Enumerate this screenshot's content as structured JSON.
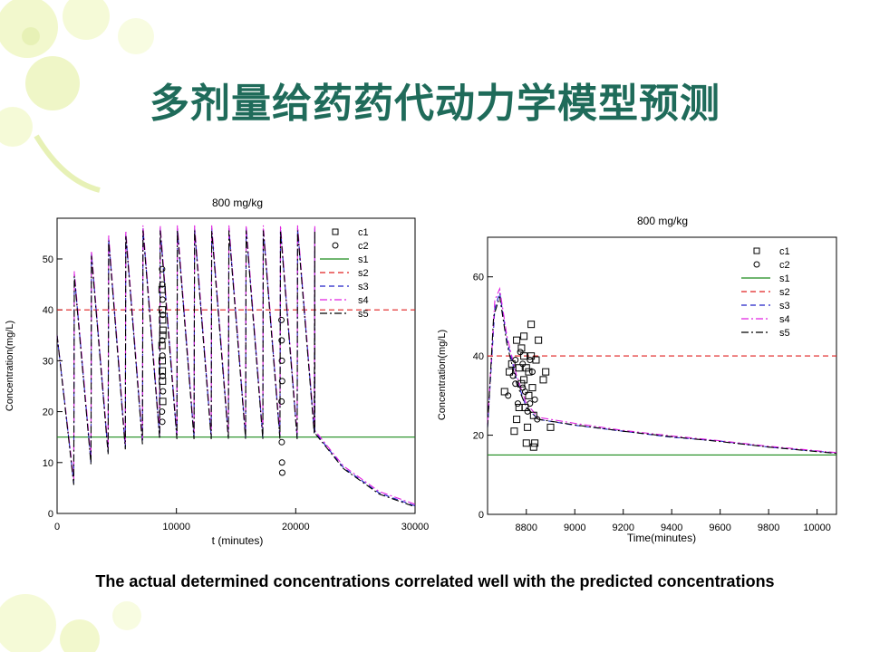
{
  "slide": {
    "title": "多剂量给药药代动力学模型预测",
    "caption": "The actual determined concentrations correlated well with the predicted concentrations"
  },
  "colors": {
    "title": "#1f6b5a",
    "s1": "#1a8a1a",
    "s2": "#e02020",
    "s3": "#2020c8",
    "s4": "#e020e0",
    "s5": "#000000"
  },
  "chart_data": [
    {
      "type": "line",
      "title": "800 mg/kg",
      "xlabel": "t (minutes)",
      "ylabel": "Concentration(mg/L)",
      "xlim": [
        0,
        30000
      ],
      "ylim": [
        0,
        58
      ],
      "xticks": [
        0,
        10000,
        20000,
        30000
      ],
      "xtick_labels": [
        "0",
        "10000",
        "20000",
        "30000"
      ],
      "yticks": [
        0,
        10,
        20,
        30,
        40,
        50
      ],
      "legend": [
        "c1",
        "c2",
        "s1",
        "s2",
        "s3",
        "s4",
        "s5"
      ],
      "legend_position": "top-right",
      "grid": false,
      "series": [
        {
          "name": "s1",
          "style": "solid",
          "values": [
            [
              0,
              15
            ],
            [
              30000,
              15
            ]
          ]
        },
        {
          "name": "s2",
          "style": "dashed",
          "values": [
            [
              0,
              40
            ],
            [
              30000,
              40
            ]
          ]
        },
        {
          "name": "s3",
          "style": "dashed",
          "dose_interval": 1440,
          "doses": 15,
          "peaks": [
            47,
            51,
            54,
            55,
            56,
            56,
            56,
            56,
            56,
            56,
            56,
            56,
            56,
            56,
            56
          ],
          "troughs": [
            6,
            10,
            12,
            13,
            14,
            15,
            15,
            15,
            15,
            15,
            15,
            15,
            15,
            15,
            16
          ],
          "tail": [
            [
              21600,
              16
            ],
            [
              24000,
              9
            ],
            [
              27000,
              4
            ],
            [
              30000,
              1.5
            ]
          ]
        },
        {
          "name": "s4",
          "style": "dashdot"
        },
        {
          "name": "s5",
          "style": "dashdot"
        }
      ],
      "observations": {
        "c1": [
          [
            8800,
            44
          ],
          [
            8820,
            40
          ],
          [
            8840,
            38
          ],
          [
            8860,
            35
          ],
          [
            8810,
            30
          ],
          [
            8830,
            26
          ],
          [
            8850,
            22
          ],
          [
            8870,
            36
          ],
          [
            8790,
            33
          ],
          [
            8815,
            28
          ]
        ],
        "c2": [
          [
            8800,
            48
          ],
          [
            8820,
            45
          ],
          [
            8840,
            42
          ],
          [
            8860,
            39
          ],
          [
            8810,
            34
          ],
          [
            8830,
            31
          ],
          [
            8850,
            27
          ],
          [
            8870,
            24
          ],
          [
            8790,
            20
          ],
          [
            8815,
            18
          ],
          [
            18800,
            38
          ],
          [
            18820,
            34
          ],
          [
            18840,
            30
          ],
          [
            18860,
            26
          ],
          [
            18810,
            22
          ],
          [
            18830,
            14
          ],
          [
            18850,
            10
          ],
          [
            18870,
            8
          ]
        ]
      }
    },
    {
      "type": "line",
      "title": "800 mg/kg",
      "xlabel": "Time(minutes)",
      "ylabel": "Concentration(mg/L)",
      "xlim": [
        8640,
        10080
      ],
      "ylim": [
        0,
        70
      ],
      "xticks": [
        8800,
        9000,
        9200,
        9400,
        9600,
        9800,
        10000
      ],
      "yticks": [
        0,
        20,
        40,
        60
      ],
      "legend": [
        "c1",
        "c2",
        "s1",
        "s2",
        "s3",
        "s4",
        "s5"
      ],
      "legend_position": "top-right",
      "grid": false,
      "series": [
        {
          "name": "s1",
          "style": "solid",
          "values": [
            [
              8640,
              15
            ],
            [
              10080,
              15
            ]
          ]
        },
        {
          "name": "s2",
          "style": "dashed",
          "values": [
            [
              8640,
              40
            ],
            [
              10080,
              40
            ]
          ]
        },
        {
          "name": "s3",
          "style": "dashed",
          "values": [
            [
              8640,
              22
            ],
            [
              8670,
              52
            ],
            [
              8690,
              56
            ],
            [
              8720,
              44
            ],
            [
              8760,
              34
            ],
            [
              8800,
              27
            ],
            [
              8850,
              24
            ],
            [
              9000,
              22.5
            ],
            [
              9200,
              21
            ],
            [
              9400,
              19.5
            ],
            [
              9600,
              18.5
            ],
            [
              9800,
              17
            ],
            [
              10080,
              15.5
            ]
          ]
        },
        {
          "name": "s4",
          "style": "dashdot",
          "values": [
            [
              8640,
              23
            ],
            [
              8670,
              54
            ],
            [
              8690,
              57
            ],
            [
              8720,
              45
            ],
            [
              8760,
              35
            ],
            [
              8800,
              28
            ],
            [
              8850,
              24.5
            ],
            [
              9000,
              23
            ],
            [
              9200,
              21.2
            ],
            [
              9400,
              19.8
            ],
            [
              9600,
              18.6
            ],
            [
              9800,
              17.2
            ],
            [
              10080,
              15.6
            ]
          ]
        },
        {
          "name": "s5",
          "style": "dashdot",
          "values": [
            [
              8640,
              22
            ],
            [
              8665,
              50
            ],
            [
              8690,
              55
            ],
            [
              8720,
              43
            ],
            [
              8760,
              33
            ],
            [
              8800,
              27
            ],
            [
              8850,
              24
            ],
            [
              9000,
              22.6
            ],
            [
              9200,
              21
            ],
            [
              9400,
              19.6
            ],
            [
              9600,
              18.4
            ],
            [
              9800,
              17
            ],
            [
              10080,
              15.4
            ]
          ]
        }
      ],
      "observations": {
        "c1": [
          [
            8710,
            31
          ],
          [
            8730,
            36
          ],
          [
            8740,
            38
          ],
          [
            8750,
            21
          ],
          [
            8760,
            24
          ],
          [
            8770,
            37
          ],
          [
            8780,
            42
          ],
          [
            8790,
            40
          ],
          [
            8790,
            34
          ],
          [
            8795,
            27
          ],
          [
            8800,
            18
          ],
          [
            8805,
            22
          ],
          [
            8810,
            30
          ],
          [
            8810,
            36
          ],
          [
            8820,
            40
          ],
          [
            8820,
            48
          ],
          [
            8825,
            32
          ],
          [
            8830,
            17
          ],
          [
            8830,
            25
          ],
          [
            8835,
            18
          ],
          [
            8840,
            39
          ],
          [
            8850,
            44
          ],
          [
            8870,
            34
          ],
          [
            8880,
            36
          ],
          [
            8900,
            22
          ],
          [
            8760,
            44
          ],
          [
            8770,
            27
          ],
          [
            8780,
            33
          ],
          [
            8790,
            45
          ],
          [
            8800,
            37
          ]
        ],
        "c2": [
          [
            8725,
            30
          ],
          [
            8745,
            35
          ],
          [
            8755,
            33
          ],
          [
            8765,
            28
          ],
          [
            8775,
            41
          ],
          [
            8785,
            38
          ],
          [
            8795,
            31
          ],
          [
            8805,
            26
          ],
          [
            8815,
            39
          ],
          [
            8825,
            36
          ],
          [
            8835,
            29
          ],
          [
            8845,
            24
          ],
          [
            8755,
            39
          ],
          [
            8785,
            32
          ],
          [
            8815,
            28
          ]
        ]
      }
    }
  ]
}
